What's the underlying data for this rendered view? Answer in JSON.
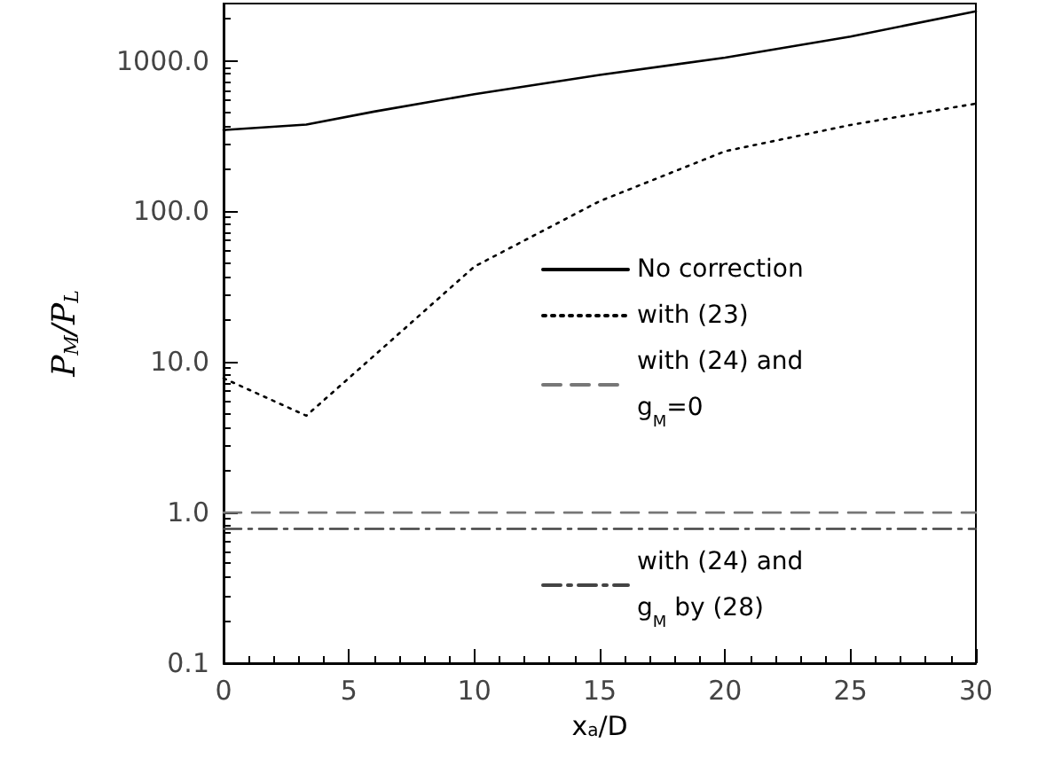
{
  "chart_data": {
    "type": "line",
    "xlabel": "x$_{a}$/D",
    "ylabel": "P$_{M}$/P$_{L}$",
    "x": [
      0,
      3.3,
      6,
      10,
      15,
      20,
      25,
      30
    ],
    "series": [
      {
        "name": "No correction",
        "color": "#000000",
        "line_style": "solid",
        "values": [
          347,
          377,
          460,
          600,
          805,
          1050,
          1450,
          2130
        ]
      },
      {
        "name": "with (23)",
        "color": "#000000",
        "line_style": "dotted",
        "values": [
          7.8,
          4.4,
          11,
          43,
          117,
          251,
          375,
          520
        ]
      },
      {
        "name": "with (24) and g$_{M}$=0",
        "color": "#777777",
        "line_style": "dashed",
        "values": [
          1,
          1,
          1,
          1,
          1,
          1,
          1,
          1
        ]
      },
      {
        "name": "with (24) and g$_{M}$ by (28)",
        "color": "#444444",
        "line_style": "dashdot",
        "values": [
          0.78,
          0.78,
          0.78,
          0.78,
          0.78,
          0.78,
          0.78,
          0.78
        ]
      }
    ],
    "xlim": [
      0,
      30
    ],
    "xticks": [
      0,
      5,
      10,
      15,
      20,
      25,
      30
    ],
    "ylim": [
      0.1,
      2400
    ],
    "log": "y",
    "yticks": [
      {
        "value": 0.1,
        "label": "0.1"
      },
      {
        "value": 1,
        "label": "1.0"
      },
      {
        "value": 10,
        "label": "10.0"
      },
      {
        "value": 100,
        "label": "100.0"
      },
      {
        "value": 1000,
        "label": "1000.0"
      }
    ],
    "grid": false,
    "legend": "right",
    "marker": "none"
  }
}
